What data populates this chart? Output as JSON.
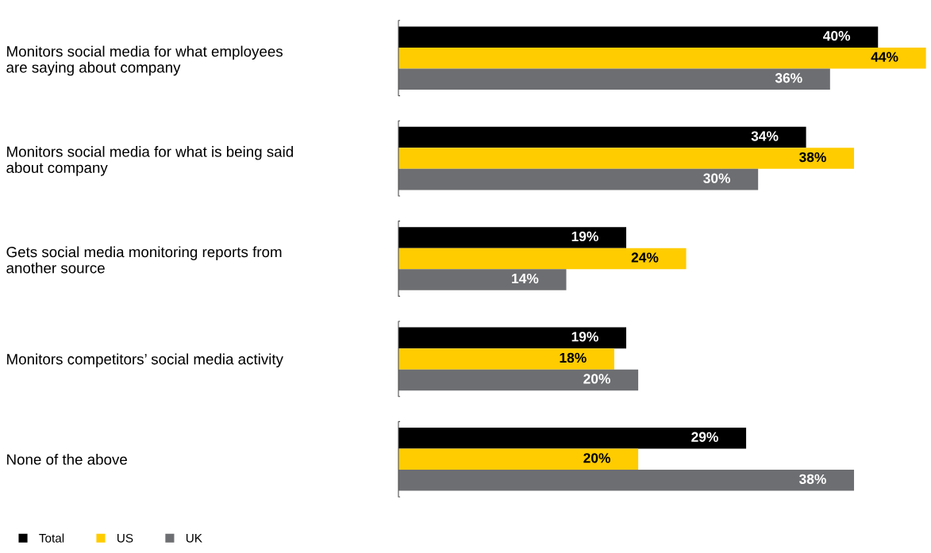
{
  "chart_data": {
    "type": "bar",
    "orientation": "horizontal",
    "categories": [
      "Monitors social media for what employees\nare saying about company",
      "Monitors social media for what is being said\nabout company",
      "Gets social media monitoring reports from\nanother source",
      "Monitors competitors’ social media activity",
      "None of the above"
    ],
    "series": [
      {
        "name": "Total",
        "color": "#000000",
        "values": [
          40,
          34,
          19,
          19,
          29
        ],
        "value_labels": [
          "40%",
          "34%",
          "19%",
          "19%",
          "29%"
        ]
      },
      {
        "name": "US",
        "color": "#ffcc00",
        "values": [
          44,
          38,
          24,
          18,
          20
        ],
        "value_labels": [
          "44%",
          "38%",
          "24%",
          "18%",
          "20%"
        ]
      },
      {
        "name": "UK",
        "color": "#6d6e71",
        "values": [
          36,
          30,
          14,
          20,
          38
        ],
        "value_labels": [
          "36%",
          "30%",
          "14%",
          "20%",
          "38%"
        ]
      }
    ],
    "legend": "bottom left"
  }
}
